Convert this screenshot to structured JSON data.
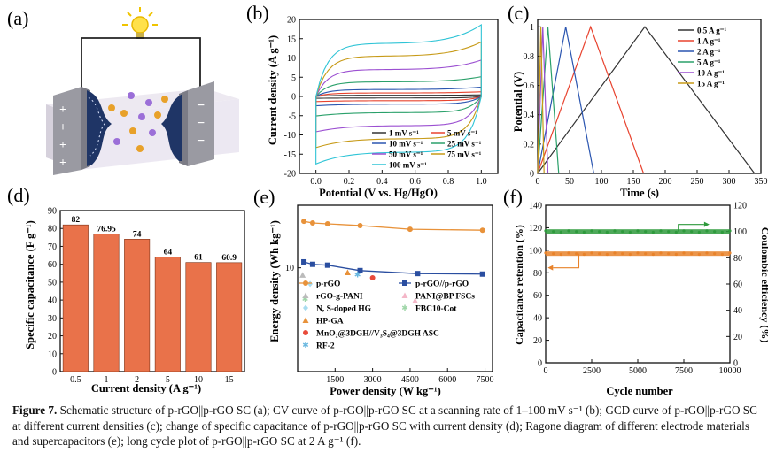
{
  "panels": {
    "a": {
      "letter": "(a)"
    },
    "b": {
      "letter": "(b)",
      "xlabel": "Potential (V vs. Hg/HgO)",
      "ylabel": "Current density (A g⁻¹)"
    },
    "c": {
      "letter": "(c)",
      "xlabel": "Time (s)",
      "ylabel": "Potential (V)"
    },
    "d": {
      "letter": "(d)",
      "xlabel": "Current density (A g⁻¹)",
      "ylabel": "Specific capacitance (F g⁻¹)"
    },
    "e": {
      "letter": "(e)",
      "xlabel": "Power density (W kg⁻¹)",
      "ylabel": "Energy density (Wh kg⁻¹)"
    },
    "f": {
      "letter": "(f)",
      "xlabel": "Cycle number",
      "ylabel_left": "Capacitance retention (%)",
      "ylabel_right": "Coulombic efficiency (%)"
    }
  },
  "caption": {
    "label": "Figure 7.",
    "text": " Schematic structure of p-rGO||p-rGO SC (a); CV curve of p-rGO||p-rGO SC at a scanning rate of 1–100 mV s⁻¹ (b); GCD curve of p-rGO||p-rGO SC at different current densities (c); change of specific capacitance of p-rGO||p-rGO SC with current density (d); Ragone diagram of different electrode materials and supercapacitors (e); long cycle plot of p-rGO||p-rGO SC at 2 A g⁻¹ (f)."
  },
  "chart_data": [
    {
      "panel": "b",
      "type": "line",
      "xlabel": "Potential (V vs. Hg/HgO)",
      "ylabel": "Current density (A g⁻¹)",
      "xlim": [
        -0.1,
        1.1
      ],
      "ylim": [
        -20,
        20
      ],
      "xticks": [
        "0.0",
        "0.2",
        "0.4",
        "0.6",
        "0.8",
        "1.0"
      ],
      "yticks": [
        "-20",
        "-15",
        "-10",
        "-5",
        "0",
        "5",
        "10",
        "15",
        "20"
      ],
      "series": [
        {
          "name": "1 mV s⁻¹",
          "color": "#333333",
          "upper": 0.3,
          "lower": -0.4
        },
        {
          "name": "5 mV s⁻¹",
          "color": "#e8432f",
          "upper": 0.9,
          "lower": -1.1
        },
        {
          "name": "10 mV s⁻¹",
          "color": "#2a55b0",
          "upper": 1.8,
          "lower": -2.0
        },
        {
          "name": "25 mV s⁻¹",
          "color": "#2aa06a",
          "upper": 3.8,
          "lower": -4.2
        },
        {
          "name": "50 mV s⁻¹",
          "color": "#9b4fd1",
          "upper": 7.0,
          "lower": -7.6
        },
        {
          "name": "75 mV s⁻¹",
          "color": "#c79a17",
          "upper": 10.5,
          "lower": -11.0
        },
        {
          "name": "100 mV s⁻¹",
          "color": "#2fc4d6",
          "upper": 13.8,
          "lower": -14.5
        }
      ]
    },
    {
      "panel": "c",
      "type": "line",
      "xlabel": "Time (s)",
      "ylabel": "Potential (V)",
      "xlim": [
        0,
        350
      ],
      "ylim": [
        0,
        1.05
      ],
      "xticks": [
        "0",
        "50",
        "100",
        "150",
        "200",
        "250",
        "300",
        "350"
      ],
      "yticks": [
        "0",
        "0.2",
        "0.4",
        "0.6",
        "0.8",
        "1"
      ],
      "series": [
        {
          "name": "0.5 A g⁻¹",
          "color": "#333333",
          "peak": 168,
          "end": 340
        },
        {
          "name": "1 A g⁻¹",
          "color": "#e8432f",
          "peak": 83,
          "end": 166
        },
        {
          "name": "2 A g⁻¹",
          "color": "#2a55b0",
          "peak": 44,
          "end": 88
        },
        {
          "name": "5 A g⁻¹",
          "color": "#2aa06a",
          "peak": 16,
          "end": 33
        },
        {
          "name": "10 A g⁻¹",
          "color": "#9b4fd1",
          "peak": 8,
          "end": 16
        },
        {
          "name": "15 A g⁻¹",
          "color": "#c79a17",
          "peak": 5,
          "end": 10
        }
      ]
    },
    {
      "panel": "d",
      "type": "bar",
      "xlabel": "Current density (A g⁻¹)",
      "ylabel": "Specific capacitance (F g⁻¹)",
      "categories": [
        "0.5",
        "1",
        "2",
        "5",
        "10",
        "15"
      ],
      "values": [
        82,
        76.95,
        74,
        64,
        61,
        60.9
      ],
      "labels": [
        "82",
        "76.95",
        "74",
        "64",
        "61",
        "60.9"
      ],
      "ylim": [
        0,
        90
      ],
      "yticks": [
        "0",
        "10",
        "20",
        "30",
        "40",
        "50",
        "60",
        "70",
        "80",
        "90"
      ],
      "color": "#e9724a"
    },
    {
      "panel": "e",
      "type": "scatter",
      "xlabel": "Power density (W kg⁻¹)",
      "ylabel": "Energy density (Wh kg⁻¹)",
      "xlim": [
        0,
        7800
      ],
      "ylim_log": [
        1,
        40
      ],
      "xticks": [
        "1500",
        "3000",
        "4500",
        "6000",
        "7500"
      ],
      "yticks": [
        "10"
      ],
      "series": [
        {
          "name": "p-rGO",
          "color": "#e8923a",
          "marker": "circle",
          "line": true,
          "x": [
            250,
            600,
            1200,
            2500,
            4500,
            7400
          ],
          "y": [
            28,
            27,
            26.5,
            25.5,
            23.5,
            23
          ]
        },
        {
          "name": "p-rGO//p-rGO",
          "color": "#2a4ea0",
          "marker": "square",
          "line": true,
          "x": [
            250,
            600,
            1200,
            2500,
            4800,
            7400
          ],
          "y": [
            11.4,
            10.8,
            10.6,
            9.4,
            8.8,
            8.7
          ]
        },
        {
          "name": "rGO-g-PANI",
          "color": "#bbbbbb",
          "marker": "tri",
          "line": false,
          "x": [
            200
          ],
          "y": [
            8.5
          ]
        },
        {
          "name": "PANI@BP FSCs",
          "color": "#f4b7c8",
          "marker": "tri",
          "line": false,
          "x": [
            4700
          ],
          "y": [
            4.8
          ]
        },
        {
          "name": "N, S-doped HG",
          "color": "#a8dcf0",
          "marker": "diamond",
          "line": false,
          "x": [
            500
          ],
          "y": [
            7.0
          ]
        },
        {
          "name": "FBC10-Cot",
          "color": "#9fd6a8",
          "marker": "star",
          "line": false,
          "x": [
            300
          ],
          "y": [
            5.0
          ]
        },
        {
          "name": "HP-GA",
          "color": "#e8923a",
          "marker": "tri",
          "line": false,
          "x": [
            2000
          ],
          "y": [
            9.0
          ]
        },
        {
          "name": "MnO₂@3DGH//V₃S₄@3DGH ASC",
          "color": "#e84a3a",
          "marker": "circle",
          "line": false,
          "x": [
            3000
          ],
          "y": [
            8.0
          ]
        },
        {
          "name": "RF-2",
          "color": "#6ab8e0",
          "marker": "star",
          "line": false,
          "x": [
            2400
          ],
          "y": [
            8.6
          ]
        }
      ]
    },
    {
      "panel": "f",
      "type": "scatter",
      "xlabel": "Cycle number",
      "ylabel_left": "Capacitance retention (%)",
      "ylabel_right": "Coulombic efficiency (%)",
      "xlim": [
        0,
        10000
      ],
      "ylim_left": [
        0,
        140
      ],
      "ylim_right": [
        0,
        120
      ],
      "xticks": [
        "0",
        "2500",
        "5000",
        "7500",
        "10000"
      ],
      "yticks_left": [
        "0",
        "20",
        "40",
        "60",
        "80",
        "100",
        "120",
        "140"
      ],
      "yticks_right": [
        "0",
        "20",
        "40",
        "60",
        "80",
        "100",
        "120"
      ],
      "series": [
        {
          "name": "Coulombic efficiency",
          "axis": "right",
          "color": "#2e9a3c",
          "value": 100
        },
        {
          "name": "Capacitance retention",
          "axis": "left",
          "color": "#e8822a",
          "value": 97
        }
      ]
    }
  ]
}
